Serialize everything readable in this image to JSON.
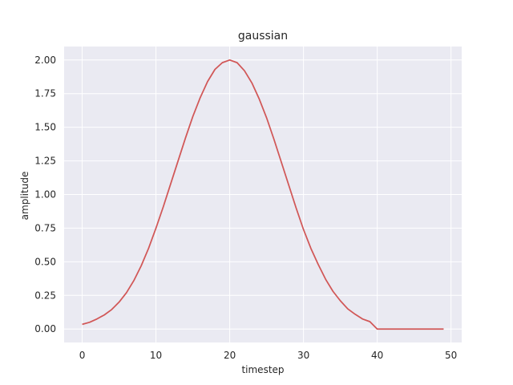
{
  "chart_data": {
    "type": "line",
    "title": "gaussian",
    "xlabel": "timestep",
    "ylabel": "amplitude",
    "xlim": [
      -2.45,
      51.45
    ],
    "ylim": [
      -0.1,
      2.1
    ],
    "xticks": [
      0,
      10,
      20,
      30,
      40,
      50
    ],
    "xtick_labels": [
      "0",
      "10",
      "20",
      "30",
      "40",
      "50"
    ],
    "yticks": [
      0,
      0.25,
      0.5,
      0.75,
      1.0,
      1.25,
      1.5,
      1.75,
      2.0
    ],
    "ytick_labels": [
      "0.00",
      "0.25",
      "0.50",
      "0.75",
      "1.00",
      "1.25",
      "1.50",
      "1.75",
      "2.00"
    ],
    "grid": true,
    "background": "#eaeaf2",
    "grid_color": "#ffffff",
    "series": [
      {
        "color": "#d15757",
        "x": [
          0,
          1,
          2,
          3,
          4,
          5,
          6,
          7,
          8,
          9,
          10,
          11,
          12,
          13,
          14,
          15,
          16,
          17,
          18,
          19,
          20,
          21,
          22,
          23,
          24,
          25,
          26,
          27,
          28,
          29,
          30,
          31,
          32,
          33,
          34,
          35,
          36,
          37,
          38,
          39,
          40,
          41,
          42,
          43,
          44,
          45,
          46,
          47,
          48,
          49
        ],
        "y": [
          0.035,
          0.05,
          0.075,
          0.105,
          0.145,
          0.2,
          0.27,
          0.36,
          0.47,
          0.6,
          0.75,
          0.91,
          1.08,
          1.25,
          1.42,
          1.58,
          1.72,
          1.84,
          1.93,
          1.98,
          2.0,
          1.98,
          1.92,
          1.83,
          1.71,
          1.57,
          1.41,
          1.24,
          1.07,
          0.9,
          0.74,
          0.6,
          0.48,
          0.37,
          0.28,
          0.21,
          0.15,
          0.11,
          0.075,
          0.055,
          0.0,
          0.0,
          0.0,
          0.0,
          0.0,
          0.0,
          0.0,
          0.0,
          0.0,
          0.0
        ]
      }
    ]
  }
}
